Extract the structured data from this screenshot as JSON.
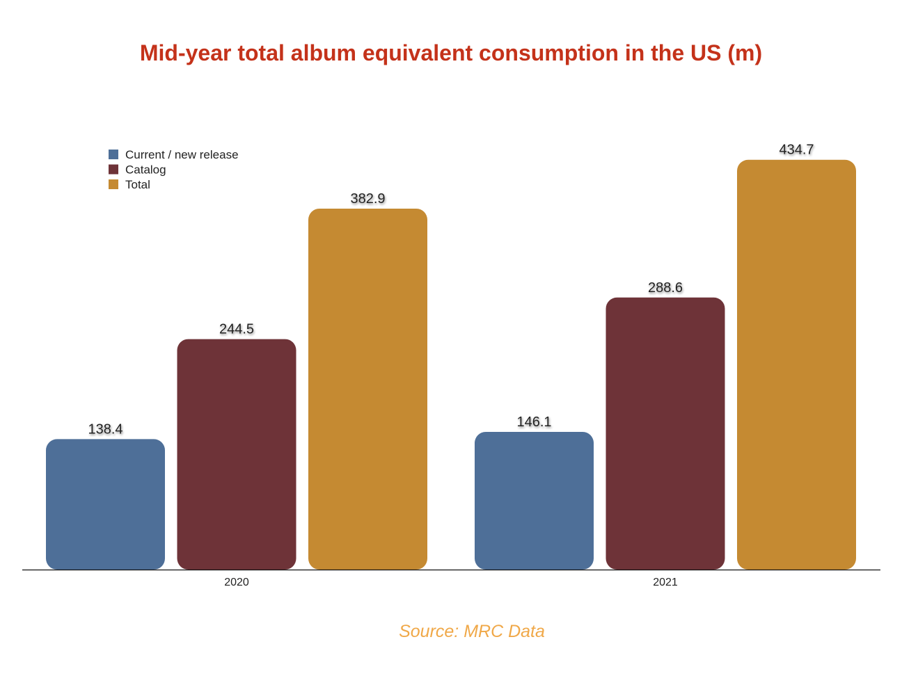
{
  "chart_data": {
    "type": "bar",
    "title": "Mid-year total album equivalent consumption in the US (m)",
    "source": "Source: MRC Data",
    "categories": [
      "2020",
      "2021"
    ],
    "series": [
      {
        "name": "Current / new release",
        "values": [
          138.4,
          146.1
        ],
        "color": "#4e6f98"
      },
      {
        "name": "Catalog",
        "values": [
          244.5,
          288.6
        ],
        "color": "#6e3338"
      },
      {
        "name": "Total",
        "values": [
          382.9,
          434.7
        ],
        "color": "#c58a32"
      }
    ],
    "data_labels": true,
    "ylim": [
      0,
      450
    ],
    "grid": false,
    "legend_position": "top-left",
    "title_color": "#c4321a",
    "source_color": "#f0a848"
  }
}
